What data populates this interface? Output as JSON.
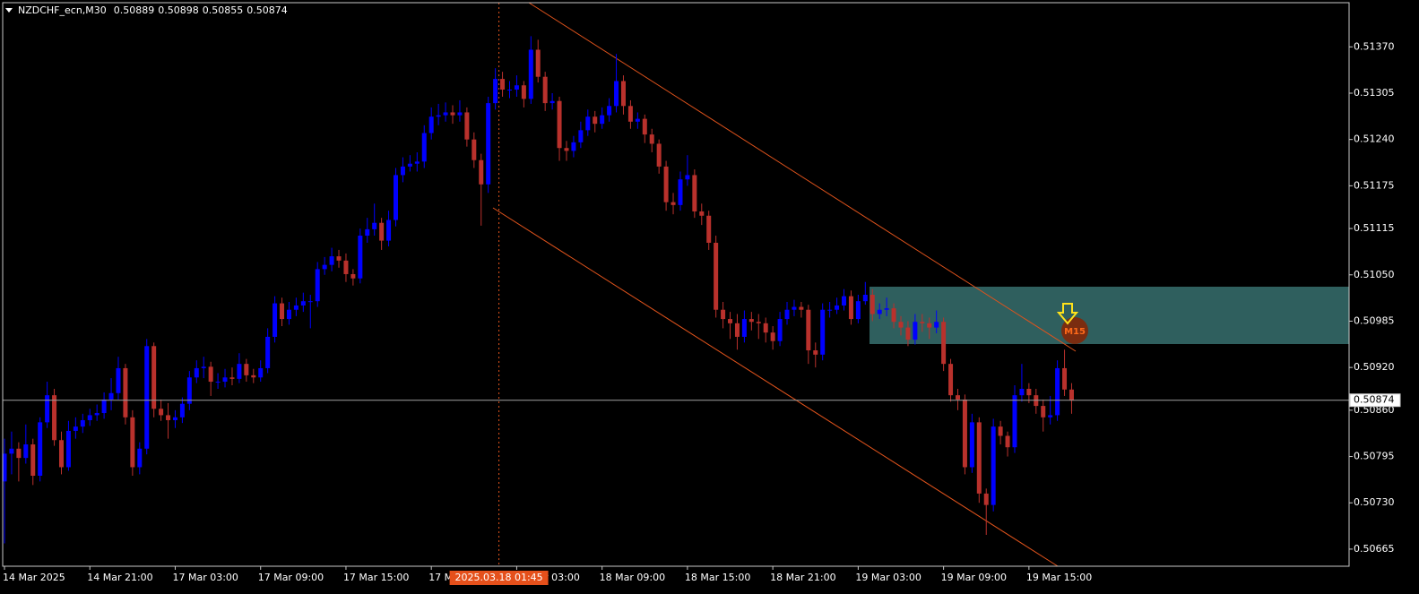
{
  "chart_data": {
    "type": "candlestick",
    "title": "NZDCHF_ecn,M30",
    "annotation": "M15",
    "up_color": "#0000ff",
    "down_color": "#b9312c",
    "open": [
      0.5076,
      0.50799,
      0.50806,
      0.50793,
      0.50812,
      0.50768,
      0.50843,
      0.50881,
      0.50818,
      0.5078,
      0.50831,
      0.50837,
      0.50846,
      0.50853,
      0.50856,
      0.50875,
      0.50884,
      0.50919,
      0.5085,
      0.5078,
      0.50806,
      0.5095,
      0.50862,
      0.50853,
      0.50846,
      0.5085,
      0.50869,
      0.50906,
      0.50919,
      0.50921,
      0.509,
      0.509,
      0.50906,
      0.50904,
      0.50925,
      0.50909,
      0.50906,
      0.50919,
      0.50963,
      0.5101,
      0.50988,
      0.51001,
      0.51007,
      0.51013,
      0.51013,
      0.51058,
      0.51064,
      0.51076,
      0.5107,
      0.51051,
      0.51045,
      0.51105,
      0.51114,
      0.51123,
      0.51098,
      0.51127,
      0.5119,
      0.51202,
      0.51206,
      0.51209,
      0.51249,
      0.51272,
      0.51274,
      0.51278,
      0.51274,
      0.51278,
      0.5124,
      0.51211,
      0.51177,
      0.51291,
      0.51325,
      0.5131,
      0.5131,
      0.51316,
      0.51297,
      0.51366,
      0.51328,
      0.51291,
      0.51294,
      0.51228,
      0.51224,
      0.51236,
      0.51253,
      0.51272,
      0.51262,
      0.51274,
      0.51287,
      0.51322,
      0.51287,
      0.51265,
      0.51269,
      0.51247,
      0.51234,
      0.51202,
      0.51152,
      0.51148,
      0.51184,
      0.5119,
      0.51139,
      0.51133,
      0.51095,
      0.51001,
      0.50988,
      0.50982,
      0.50963,
      0.50988,
      0.50984,
      0.50982,
      0.50969,
      0.50957,
      0.50988,
      0.51001,
      0.51005,
      0.51001,
      0.50944,
      0.50938,
      0.51001,
      0.51001,
      0.51007,
      0.5102,
      0.50988,
      0.51013,
      0.51022,
      0.50995,
      0.51001,
      0.51003,
      0.50984,
      0.50976,
      0.50959,
      0.50984,
      0.50982,
      0.50976,
      0.50984,
      0.50925,
      0.50881,
      0.50875,
      0.5078,
      0.50843,
      0.50743,
      0.50727,
      0.50837,
      0.50824,
      0.50808,
      0.50881,
      0.5089,
      0.50881,
      0.50866,
      0.5085,
      0.50853,
      0.50919,
      0.50889
    ],
    "high": [
      0.5082,
      0.5083,
      0.50815,
      0.5084,
      0.5082,
      0.5085,
      0.509,
      0.5089,
      0.5083,
      0.50845,
      0.5085,
      0.50855,
      0.50862,
      0.50868,
      0.50885,
      0.50905,
      0.50935,
      0.50925,
      0.5086,
      0.50815,
      0.5096,
      0.50955,
      0.50875,
      0.5087,
      0.5086,
      0.50878,
      0.50915,
      0.5093,
      0.50935,
      0.50928,
      0.50912,
      0.50918,
      0.5092,
      0.5094,
      0.50932,
      0.50918,
      0.5093,
      0.50975,
      0.5102,
      0.51018,
      0.51012,
      0.51018,
      0.51025,
      0.51022,
      0.51068,
      0.51075,
      0.51088,
      0.51085,
      0.5108,
      0.51058,
      0.51115,
      0.5113,
      0.5115,
      0.5113,
      0.5114,
      0.512,
      0.51215,
      0.51218,
      0.51222,
      0.5126,
      0.51285,
      0.5129,
      0.51292,
      0.51288,
      0.51295,
      0.51285,
      0.5125,
      0.5122,
      0.513,
      0.5134,
      0.51335,
      0.51322,
      0.5133,
      0.51322,
      0.51385,
      0.5138,
      0.51335,
      0.51305,
      0.513,
      0.51238,
      0.51245,
      0.51265,
      0.51282,
      0.5128,
      0.51285,
      0.51298,
      0.5136,
      0.5133,
      0.51295,
      0.51278,
      0.51275,
      0.51255,
      0.5124,
      0.5121,
      0.51165,
      0.51195,
      0.51218,
      0.51198,
      0.5115,
      0.5114,
      0.51105,
      0.51012,
      0.50998,
      0.50995,
      0.51,
      0.50998,
      0.50995,
      0.5099,
      0.50978,
      0.50998,
      0.51012,
      0.51015,
      0.51012,
      0.51008,
      0.50955,
      0.5101,
      0.51012,
      0.51018,
      0.5103,
      0.51028,
      0.51022,
      0.5104,
      0.5103,
      0.5101,
      0.51018,
      0.5101,
      0.50992,
      0.50985,
      0.50995,
      0.50995,
      0.5099,
      0.51,
      0.5099,
      0.50932,
      0.5089,
      0.50882,
      0.50855,
      0.5085,
      0.5075,
      0.50848,
      0.50845,
      0.5083,
      0.50895,
      0.50925,
      0.50898,
      0.5089,
      0.50875,
      0.5088,
      0.5093,
      0.50945,
      0.50898
    ],
    "low": [
      0.50673,
      0.5077,
      0.5076,
      0.50785,
      0.50755,
      0.5076,
      0.50835,
      0.5081,
      0.5077,
      0.50775,
      0.5082,
      0.50828,
      0.50838,
      0.50845,
      0.50848,
      0.5086,
      0.50875,
      0.5084,
      0.50768,
      0.5077,
      0.50798,
      0.5085,
      0.50845,
      0.5082,
      0.50835,
      0.50842,
      0.5086,
      0.50898,
      0.50905,
      0.5088,
      0.5089,
      0.50892,
      0.50895,
      0.50898,
      0.509,
      0.50898,
      0.509,
      0.50912,
      0.50955,
      0.50978,
      0.5098,
      0.50992,
      0.50998,
      0.50975,
      0.51005,
      0.5105,
      0.51055,
      0.5106,
      0.5104,
      0.51035,
      0.51038,
      0.51095,
      0.51105,
      0.51085,
      0.5109,
      0.51118,
      0.5118,
      0.51195,
      0.51195,
      0.512,
      0.5124,
      0.5126,
      0.51265,
      0.51262,
      0.51265,
      0.5123,
      0.512,
      0.51119,
      0.51165,
      0.51282,
      0.513,
      0.51298,
      0.513,
      0.51285,
      0.5129,
      0.5132,
      0.5128,
      0.51282,
      0.5121,
      0.5121,
      0.51215,
      0.51228,
      0.51245,
      0.5125,
      0.51255,
      0.51265,
      0.51278,
      0.51275,
      0.51255,
      0.51255,
      0.51235,
      0.51222,
      0.51192,
      0.5114,
      0.51135,
      0.5114,
      0.51175,
      0.5113,
      0.5112,
      0.51085,
      0.5099,
      0.50975,
      0.5096,
      0.50945,
      0.50955,
      0.50972,
      0.5096,
      0.50955,
      0.50945,
      0.5095,
      0.5098,
      0.50992,
      0.5099,
      0.50925,
      0.5092,
      0.5093,
      0.5099,
      0.50995,
      0.51,
      0.5098,
      0.50982,
      0.51008,
      0.50985,
      0.50988,
      0.50992,
      0.50975,
      0.50965,
      0.5095,
      0.50952,
      0.5097,
      0.5096,
      0.50968,
      0.50915,
      0.50872,
      0.5086,
      0.5077,
      0.50772,
      0.5073,
      0.50685,
      0.50718,
      0.50812,
      0.50795,
      0.508,
      0.50872,
      0.5087,
      0.50855,
      0.5083,
      0.5084,
      0.50845,
      0.5088,
      0.50855
    ],
    "close": [
      0.50799,
      0.50806,
      0.50793,
      0.50812,
      0.50768,
      0.50843,
      0.50881,
      0.50818,
      0.5078,
      0.50831,
      0.50837,
      0.50846,
      0.50853,
      0.50856,
      0.50875,
      0.50884,
      0.50919,
      0.5085,
      0.5078,
      0.50806,
      0.5095,
      0.50862,
      0.50853,
      0.50846,
      0.5085,
      0.50869,
      0.50906,
      0.50919,
      0.50921,
      0.509,
      0.509,
      0.50906,
      0.50904,
      0.50925,
      0.50909,
      0.50906,
      0.50919,
      0.50963,
      0.5101,
      0.50988,
      0.51001,
      0.51007,
      0.51013,
      0.51013,
      0.51058,
      0.51064,
      0.51076,
      0.5107,
      0.51051,
      0.51045,
      0.51105,
      0.51114,
      0.51123,
      0.51098,
      0.51127,
      0.5119,
      0.51202,
      0.51206,
      0.51209,
      0.51249,
      0.51272,
      0.51274,
      0.51278,
      0.51274,
      0.51278,
      0.5124,
      0.51211,
      0.51177,
      0.51291,
      0.51325,
      0.5131,
      0.5131,
      0.51316,
      0.51297,
      0.51366,
      0.51328,
      0.51291,
      0.51294,
      0.51228,
      0.51224,
      0.51236,
      0.51253,
      0.51272,
      0.51262,
      0.51274,
      0.51287,
      0.51322,
      0.51287,
      0.51265,
      0.51269,
      0.51247,
      0.51234,
      0.51202,
      0.51152,
      0.51148,
      0.51184,
      0.5119,
      0.51139,
      0.51133,
      0.51095,
      0.51001,
      0.50988,
      0.50982,
      0.50963,
      0.50988,
      0.50984,
      0.50982,
      0.50969,
      0.50957,
      0.50988,
      0.51001,
      0.51005,
      0.51001,
      0.50944,
      0.50938,
      0.51001,
      0.51001,
      0.51007,
      0.5102,
      0.50988,
      0.51013,
      0.51022,
      0.50995,
      0.51001,
      0.51003,
      0.50984,
      0.50976,
      0.50959,
      0.50984,
      0.50982,
      0.50976,
      0.50984,
      0.50925,
      0.50881,
      0.50875,
      0.5078,
      0.50843,
      0.50743,
      0.50727,
      0.50837,
      0.50824,
      0.50808,
      0.50881,
      0.5089,
      0.50881,
      0.50866,
      0.5085,
      0.50853,
      0.50919,
      0.50889,
      0.50874
    ],
    "xlim": [
      0,
      189
    ],
    "xticks": [
      {
        "value": 0,
        "label": "14 Mar 2025"
      },
      {
        "value": 12,
        "label": "14 Mar 21:00"
      },
      {
        "value": 24,
        "label": "17 Mar 03:00"
      },
      {
        "value": 36,
        "label": "17 Mar 09:00"
      },
      {
        "value": 48,
        "label": "17 Mar 15:00"
      },
      {
        "value": 60,
        "label": "17 Mar 21:00"
      },
      {
        "value": 72,
        "label": "18 Mar 03:00"
      },
      {
        "value": 84,
        "label": "18 Mar 09:00"
      },
      {
        "value": 96,
        "label": "18 Mar 15:00"
      },
      {
        "value": 108,
        "label": "18 Mar 21:00"
      },
      {
        "value": 120,
        "label": "19 Mar 03:00"
      },
      {
        "value": 132,
        "label": "19 Mar 09:00"
      },
      {
        "value": 144,
        "label": "19 Mar 15:00"
      }
    ],
    "crosshair": {
      "value": 69.5,
      "label": "2025.03.18 01:45"
    },
    "ylim": [
      0.50641,
      0.51432
    ],
    "yticks": [
      {
        "value": 0.5137,
        "label": "0.51370"
      },
      {
        "value": 0.51305,
        "label": "0.51305"
      },
      {
        "value": 0.5124,
        "label": "0.51240"
      },
      {
        "value": 0.51175,
        "label": "0.51175"
      },
      {
        "value": 0.51115,
        "label": "0.51115"
      },
      {
        "value": 0.5105,
        "label": "0.51050"
      },
      {
        "value": 0.50985,
        "label": "0.50985"
      },
      {
        "value": 0.5092,
        "label": "0.50920"
      },
      {
        "value": 0.5086,
        "label": "0.50860"
      },
      {
        "value": 0.50795,
        "label": "0.50795"
      },
      {
        "value": 0.5073,
        "label": "0.50730"
      },
      {
        "value": 0.50665,
        "label": "0.50665"
      }
    ]
  }
}
